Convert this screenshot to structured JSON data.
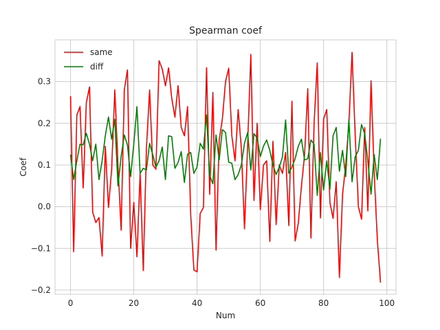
{
  "chart_data": {
    "type": "line",
    "title": "Spearman coef",
    "xlabel": "Num",
    "ylabel": "Coef",
    "xlim": [
      -4.9,
      102.9
    ],
    "ylim": [
      -0.21,
      0.4
    ],
    "xticks": [
      0,
      20,
      40,
      60,
      80,
      100
    ],
    "yticks": [
      -0.2,
      -0.1,
      0.0,
      0.1,
      0.2,
      0.3
    ],
    "ytick_labels": [
      "−0.2",
      "−0.1",
      "0.0",
      "0.1",
      "0.2",
      "0.3"
    ],
    "grid": true,
    "legend_position": "top-left",
    "series": [
      {
        "name": "same",
        "color": "#ff0000",
        "values": [
          0.265,
          -0.108,
          0.22,
          0.24,
          0.045,
          0.25,
          0.287,
          -0.013,
          -0.038,
          -0.026,
          -0.118,
          0.145,
          -0.002,
          0.09,
          0.28,
          0.1,
          -0.056,
          0.28,
          0.328,
          -0.1,
          0.01,
          -0.12,
          0.08,
          -0.153,
          0.14,
          0.28,
          0.1,
          0.09,
          0.35,
          0.33,
          0.29,
          0.333,
          0.26,
          0.215,
          0.29,
          0.19,
          0.17,
          0.24,
          -0.02,
          -0.152,
          -0.156,
          -0.016,
          -0.002,
          0.333,
          0.03,
          0.274,
          -0.104,
          0.16,
          0.21,
          0.3,
          0.332,
          0.17,
          0.11,
          0.233,
          0.14,
          -0.053,
          0.15,
          0.365,
          0.015,
          0.2,
          -0.007,
          0.1,
          0.11,
          -0.083,
          0.157,
          -0.043,
          0.1,
          0.08,
          0.13,
          -0.045,
          0.253,
          -0.082,
          -0.04,
          0.05,
          0.125,
          0.283,
          -0.075,
          0.2,
          0.345,
          -0.027,
          0.21,
          0.233,
          0.01,
          -0.028,
          0.06,
          -0.17,
          0.03,
          0.1,
          0.2,
          0.37,
          0.17,
          0.0,
          -0.03,
          0.19,
          -0.01,
          0.302,
          0.08,
          -0.08,
          -0.182
        ]
      },
      {
        "name": "diff",
        "color": "#008000",
        "values": [
          0.125,
          0.065,
          0.11,
          0.15,
          0.148,
          0.176,
          0.15,
          0.11,
          0.15,
          0.065,
          0.11,
          0.17,
          0.215,
          0.162,
          0.21,
          0.05,
          0.12,
          0.172,
          0.148,
          0.072,
          0.15,
          0.24,
          0.08,
          0.092,
          0.088,
          0.152,
          0.125,
          0.095,
          0.11,
          0.143,
          0.065,
          0.17,
          0.168,
          0.092,
          0.106,
          0.132,
          0.058,
          0.126,
          0.13,
          0.08,
          0.095,
          0.152,
          0.138,
          0.22,
          0.075,
          0.055,
          0.172,
          0.112,
          0.185,
          0.178,
          0.107,
          0.104,
          0.065,
          0.077,
          0.1,
          0.152,
          0.178,
          0.088,
          0.175,
          0.165,
          0.12,
          0.145,
          0.16,
          0.135,
          0.1,
          0.077,
          0.095,
          0.119,
          0.208,
          0.08,
          0.095,
          0.115,
          0.145,
          0.162,
          0.112,
          0.115,
          0.16,
          0.15,
          0.027,
          0.13,
          0.04,
          0.11,
          0.042,
          0.17,
          0.19,
          0.085,
          0.135,
          0.072,
          0.21,
          0.06,
          0.12,
          0.135,
          0.197,
          0.175,
          0.11,
          0.03,
          0.125,
          0.065,
          0.163
        ]
      }
    ]
  }
}
